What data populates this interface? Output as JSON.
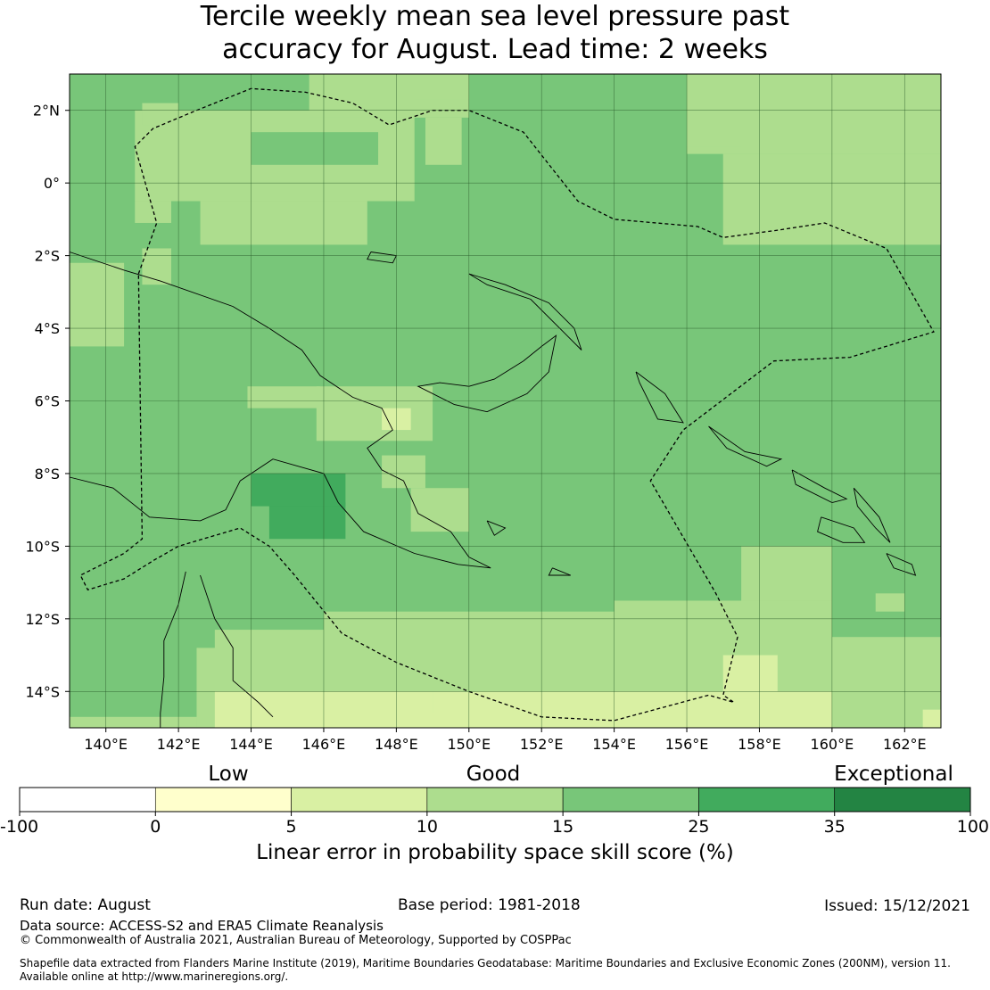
{
  "title": "Tercile weekly mean sea level pressure past\naccuracy for August. Lead time: 2 weeks",
  "map": {
    "lon_range": [
      139,
      163
    ],
    "lat_range": [
      -15,
      3
    ],
    "lat_labels": [
      "2°N",
      "0°",
      "2°S",
      "4°S",
      "6°S",
      "8°S",
      "10°S",
      "12°S",
      "14°S"
    ],
    "lat_values": [
      2,
      0,
      -2,
      -4,
      -6,
      -8,
      -10,
      -12,
      -14
    ],
    "lon_labels": [
      "140°E",
      "142°E",
      "144°E",
      "146°E",
      "148°E",
      "150°E",
      "152°E",
      "154°E",
      "156°E",
      "158°E",
      "160°E",
      "162°E"
    ],
    "lon_values": [
      140,
      142,
      144,
      146,
      148,
      150,
      152,
      154,
      156,
      158,
      160,
      162
    ],
    "colors": [
      "#ffffff",
      "#ffffcc",
      "#d9f0a3",
      "#addd8e",
      "#78c679",
      "#41ab5d",
      "#238443"
    ]
  },
  "colorbar": {
    "categories": [
      {
        "label": "Low"
      },
      {
        "label": "Good"
      },
      {
        "label": "Exceptional"
      }
    ],
    "ticks": [
      "-100",
      "0",
      "5",
      "10",
      "15",
      "25",
      "35",
      "100"
    ],
    "colors": [
      "#ffffff",
      "#ffffcc",
      "#d9f0a3",
      "#addd8e",
      "#78c679",
      "#41ab5d",
      "#238443"
    ],
    "title": "Linear error in probability space skill score (%)"
  },
  "footer": {
    "run_date": "Run date: August",
    "base_period": "Base period: 1981-2018",
    "issued": "Issued: 15/12/2021",
    "data_source": "Data source: ACCESS-S2 and ERA5 Climate Reanalysis",
    "copyright": "© Commonwealth of Australia 2021, Australian Bureau of Meteorology, Supported by COSPPac",
    "shapefile_line1": "Shapefile data extracted from Flanders Marine Institute (2019), Maritime Boundaries Geodatabase: Maritime Boundaries and Exclusive Economic Zones (200NM), version 11.",
    "shapefile_line2": "Available online at http://www.marineregions.org/."
  }
}
